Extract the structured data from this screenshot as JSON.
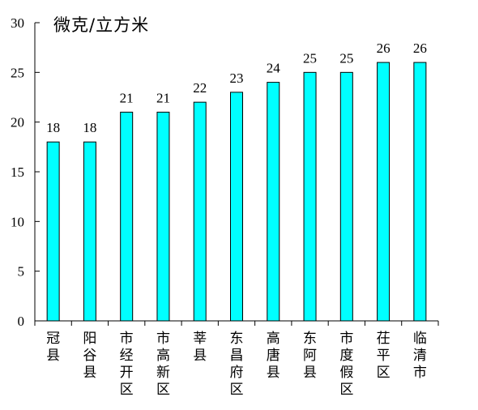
{
  "chart_data": {
    "type": "bar",
    "title": "",
    "ylabel": "微克/立方米",
    "xlabel": "",
    "categories": [
      "冠县",
      "阳谷县",
      "市经开区",
      "市高新区",
      "莘县",
      "东昌府区",
      "高唐县",
      "东阿县",
      "市度假区",
      "茌平区",
      "临清市"
    ],
    "values": [
      18,
      18,
      21,
      21,
      22,
      23,
      24,
      25,
      25,
      26,
      26
    ],
    "ylim": [
      0,
      30
    ],
    "yticks": [
      0,
      5,
      10,
      15,
      20,
      25,
      30
    ],
    "grid": false,
    "legend": "none",
    "bar_color": "#00FFFF"
  }
}
